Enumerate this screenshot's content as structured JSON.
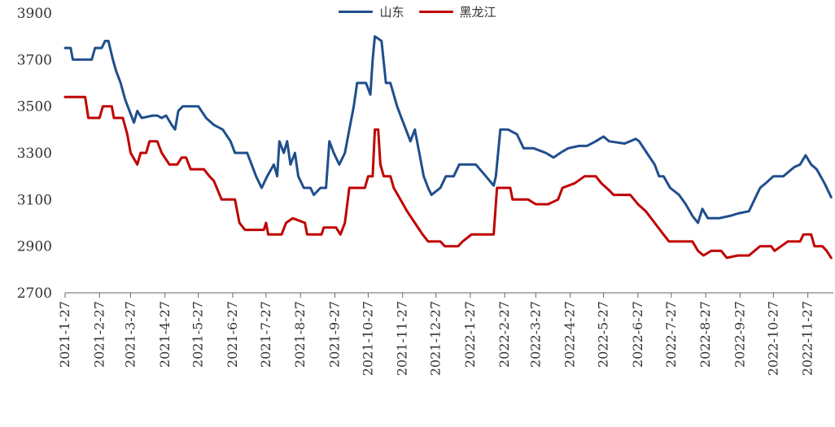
{
  "chart_data": {
    "type": "line",
    "title": "",
    "xlabel": "",
    "ylabel": "",
    "ylim": [
      2700,
      3900
    ],
    "yticks": [
      2700,
      2900,
      3100,
      3300,
      3500,
      3700,
      3900
    ],
    "xlim": [
      "2021-01-27",
      "2022-12-20"
    ],
    "xticks": [
      "2021-1-27",
      "2021-2-27",
      "2021-3-27",
      "2021-4-27",
      "2021-5-27",
      "2021-6-27",
      "2021-7-27",
      "2021-8-27",
      "2021-9-27",
      "2021-10-27",
      "2021-11-27",
      "2021-12-27",
      "2022-1-27",
      "2022-2-27",
      "2022-3-27",
      "2022-4-27",
      "2022-5-27",
      "2022-6-27",
      "2022-7-27",
      "2022-8-27",
      "2022-9-27",
      "2022-10-27",
      "2022-11-27"
    ],
    "grid": false,
    "legend_position": "top-center",
    "series": [
      {
        "name": "山东",
        "color": "#1f4e8c",
        "points": [
          [
            "2021-01-27",
            3750
          ],
          [
            "2021-02-01",
            3750
          ],
          [
            "2021-02-03",
            3700
          ],
          [
            "2021-02-20",
            3700
          ],
          [
            "2021-02-23",
            3750
          ],
          [
            "2021-03-01",
            3750
          ],
          [
            "2021-03-04",
            3780
          ],
          [
            "2021-03-07",
            3780
          ],
          [
            "2021-03-11",
            3700
          ],
          [
            "2021-03-14",
            3650
          ],
          [
            "2021-03-18",
            3600
          ],
          [
            "2021-03-22",
            3530
          ],
          [
            "2021-03-26",
            3480
          ],
          [
            "2021-03-30",
            3430
          ],
          [
            "2021-04-02",
            3480
          ],
          [
            "2021-04-06",
            3450
          ],
          [
            "2021-04-16",
            3460
          ],
          [
            "2021-04-20",
            3460
          ],
          [
            "2021-04-24",
            3450
          ],
          [
            "2021-04-28",
            3460
          ],
          [
            "2021-05-03",
            3420
          ],
          [
            "2021-05-06",
            3400
          ],
          [
            "2021-05-09",
            3480
          ],
          [
            "2021-05-13",
            3500
          ],
          [
            "2021-05-27",
            3500
          ],
          [
            "2021-06-03",
            3450
          ],
          [
            "2021-06-10",
            3420
          ],
          [
            "2021-06-18",
            3400
          ],
          [
            "2021-06-25",
            3350
          ],
          [
            "2021-06-29",
            3300
          ],
          [
            "2021-07-10",
            3300
          ],
          [
            "2021-07-14",
            3250
          ],
          [
            "2021-07-18",
            3200
          ],
          [
            "2021-07-23",
            3150
          ],
          [
            "2021-07-28",
            3200
          ],
          [
            "2021-08-03",
            3250
          ],
          [
            "2021-08-06",
            3200
          ],
          [
            "2021-08-08",
            3350
          ],
          [
            "2021-08-12",
            3300
          ],
          [
            "2021-08-15",
            3350
          ],
          [
            "2021-08-18",
            3250
          ],
          [
            "2021-08-22",
            3300
          ],
          [
            "2021-08-25",
            3200
          ],
          [
            "2021-08-30",
            3150
          ],
          [
            "2021-09-05",
            3150
          ],
          [
            "2021-09-08",
            3120
          ],
          [
            "2021-09-14",
            3150
          ],
          [
            "2021-09-19",
            3150
          ],
          [
            "2021-09-22",
            3350
          ],
          [
            "2021-09-26",
            3300
          ],
          [
            "2021-10-01",
            3250
          ],
          [
            "2021-10-06",
            3300
          ],
          [
            "2021-10-10",
            3400
          ],
          [
            "2021-10-14",
            3500
          ],
          [
            "2021-10-17",
            3600
          ],
          [
            "2021-10-25",
            3600
          ],
          [
            "2021-10-29",
            3550
          ],
          [
            "2021-10-31",
            3700
          ],
          [
            "2021-11-02",
            3800
          ],
          [
            "2021-11-08",
            3780
          ],
          [
            "2021-11-12",
            3600
          ],
          [
            "2021-11-16",
            3600
          ],
          [
            "2021-11-19",
            3550
          ],
          [
            "2021-11-22",
            3500
          ],
          [
            "2021-11-26",
            3450
          ],
          [
            "2021-11-30",
            3400
          ],
          [
            "2021-12-04",
            3350
          ],
          [
            "2021-12-08",
            3400
          ],
          [
            "2021-12-12",
            3300
          ],
          [
            "2021-12-16",
            3200
          ],
          [
            "2021-12-20",
            3150
          ],
          [
            "2021-12-23",
            3120
          ],
          [
            "2021-12-31",
            3150
          ],
          [
            "2022-01-05",
            3200
          ],
          [
            "2022-01-12",
            3200
          ],
          [
            "2022-01-17",
            3250
          ],
          [
            "2022-01-24",
            3250
          ],
          [
            "2022-02-01",
            3250
          ],
          [
            "2022-02-10",
            3200
          ],
          [
            "2022-02-17",
            3160
          ],
          [
            "2022-02-19",
            3200
          ],
          [
            "2022-02-23",
            3400
          ],
          [
            "2022-03-02",
            3400
          ],
          [
            "2022-03-10",
            3380
          ],
          [
            "2022-03-16",
            3320
          ],
          [
            "2022-03-25",
            3320
          ],
          [
            "2022-04-05",
            3300
          ],
          [
            "2022-04-12",
            3280
          ],
          [
            "2022-04-18",
            3300
          ],
          [
            "2022-04-25",
            3320
          ],
          [
            "2022-05-05",
            3330
          ],
          [
            "2022-05-12",
            3330
          ],
          [
            "2022-05-20",
            3350
          ],
          [
            "2022-05-27",
            3370
          ],
          [
            "2022-06-01",
            3350
          ],
          [
            "2022-06-15",
            3340
          ],
          [
            "2022-06-25",
            3360
          ],
          [
            "2022-06-28",
            3350
          ],
          [
            "2022-07-05",
            3300
          ],
          [
            "2022-07-12",
            3250
          ],
          [
            "2022-07-16",
            3200
          ],
          [
            "2022-07-20",
            3200
          ],
          [
            "2022-07-26",
            3150
          ],
          [
            "2022-08-03",
            3120
          ],
          [
            "2022-08-09",
            3080
          ],
          [
            "2022-08-15",
            3030
          ],
          [
            "2022-08-20",
            3000
          ],
          [
            "2022-08-24",
            3060
          ],
          [
            "2022-08-29",
            3020
          ],
          [
            "2022-09-08",
            3020
          ],
          [
            "2022-09-18",
            3030
          ],
          [
            "2022-09-25",
            3040
          ],
          [
            "2022-10-05",
            3050
          ],
          [
            "2022-10-10",
            3100
          ],
          [
            "2022-10-15",
            3150
          ],
          [
            "2022-10-20",
            3170
          ],
          [
            "2022-10-27",
            3200
          ],
          [
            "2022-11-05",
            3200
          ],
          [
            "2022-11-10",
            3220
          ],
          [
            "2022-11-15",
            3240
          ],
          [
            "2022-11-20",
            3250
          ],
          [
            "2022-11-25",
            3290
          ],
          [
            "2022-11-30",
            3250
          ],
          [
            "2022-12-05",
            3230
          ],
          [
            "2022-12-12",
            3170
          ],
          [
            "2022-12-18",
            3110
          ]
        ]
      },
      {
        "name": "黑龙江",
        "color": "#c00000",
        "points": [
          [
            "2021-01-27",
            3540
          ],
          [
            "2021-02-14",
            3540
          ],
          [
            "2021-02-17",
            3450
          ],
          [
            "2021-02-27",
            3450
          ],
          [
            "2021-03-02",
            3500
          ],
          [
            "2021-03-10",
            3500
          ],
          [
            "2021-03-12",
            3450
          ],
          [
            "2021-03-20",
            3450
          ],
          [
            "2021-03-24",
            3380
          ],
          [
            "2021-03-27",
            3300
          ],
          [
            "2021-04-02",
            3250
          ],
          [
            "2021-04-05",
            3300
          ],
          [
            "2021-04-10",
            3300
          ],
          [
            "2021-04-13",
            3350
          ],
          [
            "2021-04-20",
            3350
          ],
          [
            "2021-04-24",
            3300
          ],
          [
            "2021-05-01",
            3250
          ],
          [
            "2021-05-08",
            3250
          ],
          [
            "2021-05-12",
            3280
          ],
          [
            "2021-05-16",
            3280
          ],
          [
            "2021-05-20",
            3230
          ],
          [
            "2021-06-01",
            3230
          ],
          [
            "2021-06-06",
            3200
          ],
          [
            "2021-06-10",
            3180
          ],
          [
            "2021-06-17",
            3100
          ],
          [
            "2021-06-29",
            3100
          ],
          [
            "2021-07-03",
            3000
          ],
          [
            "2021-07-08",
            2970
          ],
          [
            "2021-07-25",
            2970
          ],
          [
            "2021-07-27",
            3000
          ],
          [
            "2021-07-29",
            2950
          ],
          [
            "2021-08-10",
            2950
          ],
          [
            "2021-08-14",
            3000
          ],
          [
            "2021-08-20",
            3020
          ],
          [
            "2021-08-31",
            3000
          ],
          [
            "2021-09-02",
            2950
          ],
          [
            "2021-09-15",
            2950
          ],
          [
            "2021-09-17",
            2980
          ],
          [
            "2021-09-28",
            2980
          ],
          [
            "2021-10-02",
            2950
          ],
          [
            "2021-10-06",
            3000
          ],
          [
            "2021-10-10",
            3150
          ],
          [
            "2021-10-24",
            3150
          ],
          [
            "2021-10-27",
            3200
          ],
          [
            "2021-10-31",
            3200
          ],
          [
            "2021-11-02",
            3400
          ],
          [
            "2021-11-05",
            3400
          ],
          [
            "2021-11-07",
            3250
          ],
          [
            "2021-11-10",
            3200
          ],
          [
            "2021-11-16",
            3200
          ],
          [
            "2021-11-19",
            3150
          ],
          [
            "2021-11-25",
            3100
          ],
          [
            "2021-12-01",
            3050
          ],
          [
            "2021-12-08",
            3000
          ],
          [
            "2021-12-15",
            2950
          ],
          [
            "2021-12-20",
            2920
          ],
          [
            "2021-12-31",
            2920
          ],
          [
            "2022-01-04",
            2900
          ],
          [
            "2022-01-16",
            2900
          ],
          [
            "2022-01-20",
            2920
          ],
          [
            "2022-01-28",
            2950
          ],
          [
            "2022-02-17",
            2950
          ],
          [
            "2022-02-20",
            3150
          ],
          [
            "2022-03-04",
            3150
          ],
          [
            "2022-03-06",
            3100
          ],
          [
            "2022-03-20",
            3100
          ],
          [
            "2022-03-27",
            3080
          ],
          [
            "2022-04-07",
            3080
          ],
          [
            "2022-04-16",
            3100
          ],
          [
            "2022-04-20",
            3150
          ],
          [
            "2022-05-01",
            3170
          ],
          [
            "2022-05-10",
            3200
          ],
          [
            "2022-05-20",
            3200
          ],
          [
            "2022-05-25",
            3170
          ],
          [
            "2022-06-01",
            3140
          ],
          [
            "2022-06-05",
            3120
          ],
          [
            "2022-06-20",
            3120
          ],
          [
            "2022-06-27",
            3080
          ],
          [
            "2022-07-04",
            3050
          ],
          [
            "2022-07-12",
            3000
          ],
          [
            "2022-07-20",
            2950
          ],
          [
            "2022-07-25",
            2920
          ],
          [
            "2022-08-15",
            2920
          ],
          [
            "2022-08-20",
            2880
          ],
          [
            "2022-08-25",
            2860
          ],
          [
            "2022-09-01",
            2880
          ],
          [
            "2022-09-10",
            2880
          ],
          [
            "2022-09-15",
            2850
          ],
          [
            "2022-09-25",
            2860
          ],
          [
            "2022-10-05",
            2860
          ],
          [
            "2022-10-10",
            2880
          ],
          [
            "2022-10-15",
            2900
          ],
          [
            "2022-10-25",
            2900
          ],
          [
            "2022-10-28",
            2880
          ],
          [
            "2022-11-03",
            2900
          ],
          [
            "2022-11-09",
            2920
          ],
          [
            "2022-11-20",
            2920
          ],
          [
            "2022-11-23",
            2950
          ],
          [
            "2022-11-30",
            2950
          ],
          [
            "2022-12-03",
            2900
          ],
          [
            "2022-12-10",
            2900
          ],
          [
            "2022-12-14",
            2880
          ],
          [
            "2022-12-18",
            2850
          ]
        ]
      }
    ]
  }
}
